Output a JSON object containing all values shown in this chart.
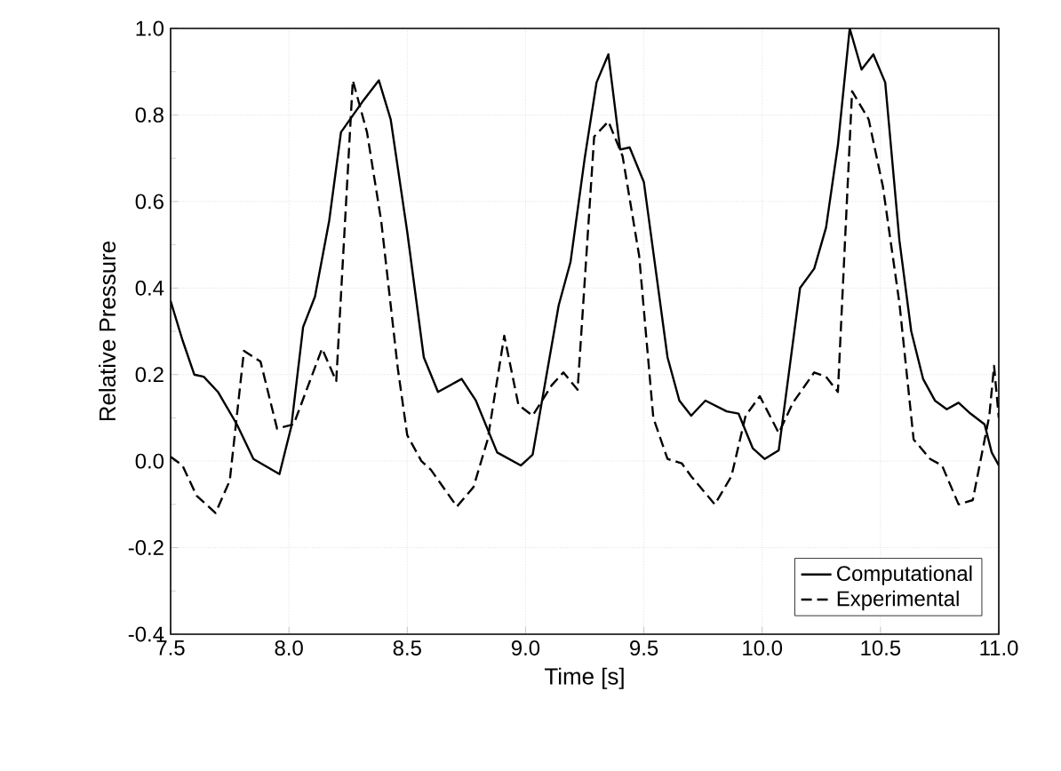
{
  "chart_data": {
    "type": "line",
    "xlabel": "Time [s]",
    "ylabel": "Relative Pressure",
    "xlim": [
      7.5,
      11.0
    ],
    "xticks": [
      {
        "value": 7.5,
        "label": "7.5"
      },
      {
        "value": 8.0,
        "label": "8.0"
      },
      {
        "value": 8.5,
        "label": "8.5"
      },
      {
        "value": 9.0,
        "label": "9.0"
      },
      {
        "value": 9.5,
        "label": "9.5"
      },
      {
        "value": 10.0,
        "label": "10.0"
      },
      {
        "value": 10.5,
        "label": "10.5"
      },
      {
        "value": 11.0,
        "label": "11.0"
      }
    ],
    "ylim": [
      -0.4,
      1.0
    ],
    "yticks": [
      {
        "value": -0.4,
        "label": "-0.4"
      },
      {
        "value": -0.2,
        "label": "-0.2"
      },
      {
        "value": 0.0,
        "label": "0.0"
      },
      {
        "value": 0.2,
        "label": "0.2"
      },
      {
        "value": 0.4,
        "label": "0.4"
      },
      {
        "value": 0.6,
        "label": "0.6"
      },
      {
        "value": 0.8,
        "label": "0.8"
      },
      {
        "value": 1.0,
        "label": "1.0"
      }
    ],
    "grid": true,
    "legend": "bottom right",
    "marker": "none",
    "series": [
      {
        "name": "Computational",
        "color": "#000000",
        "line_style": "solid",
        "x": [
          7.5,
          7.55,
          7.6,
          7.64,
          7.7,
          7.78,
          7.85,
          7.96,
          8.01,
          8.06,
          8.11,
          8.17,
          8.22,
          8.31,
          8.38,
          8.43,
          8.5,
          8.57,
          8.63,
          8.73,
          8.79,
          8.88,
          8.98,
          9.03,
          9.14,
          9.19,
          9.25,
          9.3,
          9.35,
          9.4,
          9.44,
          9.5,
          9.6,
          9.65,
          9.7,
          9.76,
          9.85,
          9.9,
          9.96,
          10.01,
          10.07,
          10.16,
          10.22,
          10.27,
          10.32,
          10.37,
          10.42,
          10.47,
          10.52,
          10.58,
          10.63,
          10.68,
          10.73,
          10.78,
          10.83,
          10.88,
          10.94,
          10.97,
          11.0
        ],
        "values": [
          0.37,
          0.28,
          0.2,
          0.195,
          0.16,
          0.085,
          0.005,
          -0.03,
          0.08,
          0.31,
          0.38,
          0.555,
          0.76,
          0.83,
          0.88,
          0.79,
          0.53,
          0.24,
          0.16,
          0.19,
          0.14,
          0.02,
          -0.01,
          0.015,
          0.36,
          0.46,
          0.7,
          0.875,
          0.94,
          0.72,
          0.725,
          0.645,
          0.24,
          0.14,
          0.105,
          0.14,
          0.115,
          0.11,
          0.03,
          0.005,
          0.025,
          0.4,
          0.445,
          0.54,
          0.73,
          1.0,
          0.905,
          0.94,
          0.875,
          0.51,
          0.3,
          0.19,
          0.14,
          0.12,
          0.135,
          0.11,
          0.085,
          0.02,
          -0.01
        ]
      },
      {
        "name": "Experimental",
        "color": "#000000",
        "line_style": "dashed",
        "x": [
          7.5,
          7.55,
          7.61,
          7.69,
          7.75,
          7.81,
          7.88,
          7.95,
          8.02,
          8.14,
          8.2,
          8.27,
          8.33,
          8.39,
          8.46,
          8.5,
          8.56,
          8.6,
          8.71,
          8.78,
          8.84,
          8.91,
          8.97,
          9.03,
          9.11,
          9.16,
          9.22,
          9.29,
          9.35,
          9.41,
          9.48,
          9.54,
          9.6,
          9.66,
          9.7,
          9.8,
          9.87,
          9.93,
          9.99,
          10.07,
          10.13,
          10.22,
          10.27,
          10.32,
          10.38,
          10.45,
          10.51,
          10.58,
          10.64,
          10.71,
          10.76,
          10.83,
          10.89,
          10.96,
          10.98,
          11.0
        ],
        "values": [
          0.01,
          -0.01,
          -0.08,
          -0.12,
          -0.045,
          0.255,
          0.23,
          0.075,
          0.085,
          0.26,
          0.185,
          0.88,
          0.76,
          0.555,
          0.215,
          0.06,
          0.0,
          -0.02,
          -0.105,
          -0.06,
          0.05,
          0.29,
          0.13,
          0.105,
          0.175,
          0.205,
          0.165,
          0.75,
          0.785,
          0.705,
          0.475,
          0.1,
          0.005,
          -0.005,
          -0.035,
          -0.1,
          -0.035,
          0.105,
          0.15,
          0.065,
          0.135,
          0.205,
          0.195,
          0.16,
          0.855,
          0.79,
          0.635,
          0.365,
          0.05,
          0.005,
          -0.01,
          -0.1,
          -0.09,
          0.105,
          0.22,
          0.1
        ]
      }
    ]
  }
}
